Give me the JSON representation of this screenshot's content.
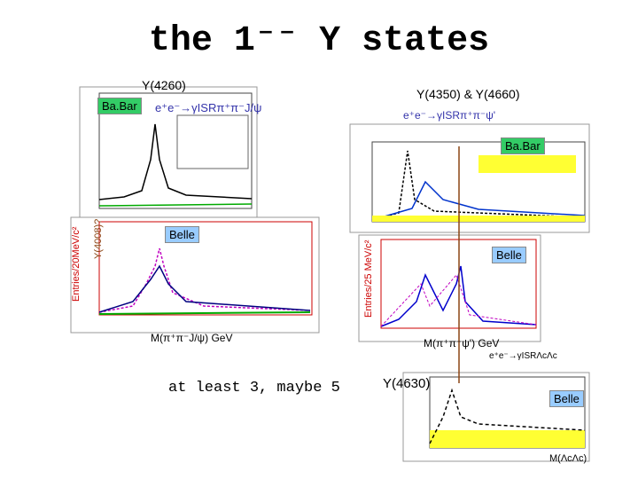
{
  "title": "the 1⁻⁻ Y states",
  "left_top": {
    "state": "Y(4260)",
    "experiment": "Ba.Bar",
    "reaction": "e⁺e⁻→γISRπ⁺π⁻J/ψ"
  },
  "right_top": {
    "state": "Y(4350) & Y(4660)",
    "experiment": "Ba.Bar",
    "reaction": "e⁺e⁻→γISRπ⁺π⁻ψ'"
  },
  "left_mid": {
    "experiment": "Belle",
    "state": "Y(4008)?",
    "y_label": "Entries/20MeV/c²",
    "x_label": "M(π⁺π⁻J/ψ) GeV"
  },
  "right_mid": {
    "experiment": "Belle",
    "y_label": "Entries/25 MeV/c²",
    "x_label": "M(π⁺π⁻ψ') GeV"
  },
  "bottom_right": {
    "reaction": "e⁺e⁻→γISRΛcΛc",
    "state": "Y(4630)",
    "experiment": "Belle",
    "x_label": "M(ΛcΛc)"
  },
  "summary": "at least 3, maybe 5"
}
